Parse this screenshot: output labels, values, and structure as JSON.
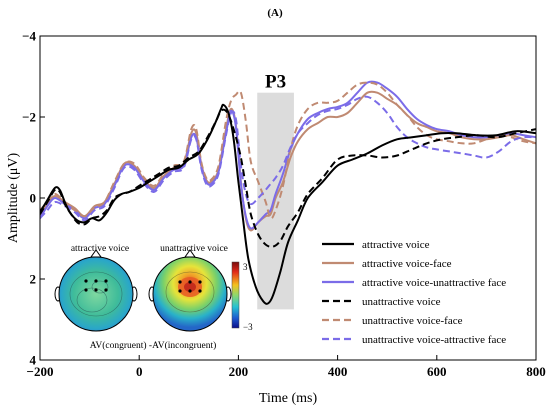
{
  "panel_label": "(A)",
  "chart_data": {
    "type": "line",
    "xlabel": "Time (ms)",
    "ylabel": "Amplitude (μV)",
    "xlim": [
      -200,
      800
    ],
    "ylim": [
      -4,
      4
    ],
    "y_inverted": true,
    "x_ticks": [
      -200,
      0,
      200,
      400,
      600,
      800
    ],
    "x_tick_labels": [
      "−200",
      "0",
      "200",
      "400",
      "600",
      "800"
    ],
    "y_ticks": [
      -4,
      -2,
      0,
      2,
      4
    ],
    "y_tick_labels": [
      "−4",
      "−2",
      "0",
      "2",
      "4"
    ],
    "grid": false,
    "legend_position": "bottom-right",
    "annotation": {
      "label": "P3",
      "x_range": [
        238,
        312
      ],
      "y_range": [
        -2.6,
        2.75
      ],
      "color": "#dcdcdc"
    },
    "series": [
      {
        "name": "attractive voice",
        "color": "#000000",
        "dash": "solid",
        "x": [
          -200,
          -185,
          -170,
          -160,
          -150,
          -140,
          -125,
          -110,
          -95,
          -80,
          -65,
          -50,
          -35,
          -20,
          0,
          20,
          40,
          60,
          80,
          100,
          120,
          140,
          155,
          165,
          170,
          180,
          190,
          200,
          210,
          220,
          235,
          250,
          260,
          270,
          285,
          300,
          320,
          340,
          370,
          400,
          430,
          460,
          490,
          520,
          550,
          580,
          610,
          640,
          680,
          720,
          760,
          800
        ],
        "y": [
          0.35,
          0.05,
          -0.25,
          -0.2,
          0.1,
          0.35,
          0.55,
          0.6,
          0.5,
          0.55,
          0.35,
          0.05,
          -0.1,
          -0.15,
          -0.25,
          -0.4,
          -0.55,
          -0.7,
          -0.75,
          -0.95,
          -1.1,
          -1.5,
          -1.9,
          -2.2,
          -2.3,
          -2.1,
          -1.5,
          -0.4,
          0.6,
          1.5,
          2.2,
          2.55,
          2.6,
          2.4,
          1.8,
          1.1,
          0.55,
          0.0,
          -0.4,
          -0.8,
          -0.95,
          -1.1,
          -1.3,
          -1.45,
          -1.5,
          -1.55,
          -1.6,
          -1.6,
          -1.55,
          -1.55,
          -1.65,
          -1.6
        ]
      },
      {
        "name": "attractive voice-face",
        "color": "#c08a72",
        "dash": "solid",
        "x": [
          -200,
          -185,
          -170,
          -150,
          -130,
          -110,
          -90,
          -70,
          -50,
          -30,
          -10,
          10,
          30,
          50,
          70,
          90,
          105,
          115,
          125,
          135,
          145,
          160,
          175,
          185,
          195,
          205,
          215,
          225,
          240,
          255,
          265,
          275,
          290,
          305,
          320,
          340,
          360,
          380,
          400,
          420,
          440,
          460,
          480,
          500,
          520,
          540,
          560,
          580,
          600,
          625,
          650,
          675,
          700,
          725,
          750,
          775,
          800
        ],
        "y": [
          0.45,
          0.15,
          -0.05,
          0.1,
          0.25,
          0.45,
          0.2,
          0.1,
          -0.35,
          -0.85,
          -0.8,
          -0.45,
          -0.25,
          -0.55,
          -0.75,
          -0.85,
          -1.6,
          -1.6,
          -0.85,
          -0.45,
          -0.4,
          -0.7,
          -1.7,
          -2.2,
          -1.8,
          -0.4,
          0.5,
          0.8,
          0.6,
          0.45,
          0.4,
          0.0,
          -0.4,
          -1.0,
          -1.4,
          -1.7,
          -1.85,
          -2.0,
          -2.0,
          -2.1,
          -2.35,
          -2.6,
          -2.6,
          -2.45,
          -2.3,
          -2.05,
          -1.85,
          -1.75,
          -1.65,
          -1.6,
          -1.5,
          -1.45,
          -1.45,
          -1.5,
          -1.55,
          -1.45,
          -1.35
        ]
      },
      {
        "name": "attractive voice-unattractive face",
        "color": "#7b6ce8",
        "dash": "solid",
        "x": [
          -200,
          -185,
          -170,
          -150,
          -130,
          -110,
          -90,
          -70,
          -50,
          -30,
          -10,
          10,
          30,
          50,
          70,
          90,
          105,
          115,
          125,
          135,
          145,
          160,
          175,
          185,
          195,
          205,
          215,
          225,
          240,
          255,
          265,
          275,
          290,
          305,
          320,
          340,
          360,
          380,
          400,
          420,
          440,
          460,
          480,
          500,
          520,
          540,
          560,
          580,
          600,
          625,
          650,
          675,
          700,
          725,
          750,
          775,
          800
        ],
        "y": [
          0.5,
          0.2,
          0.0,
          0.15,
          0.3,
          0.5,
          0.25,
          0.15,
          -0.3,
          -0.8,
          -0.75,
          -0.4,
          -0.2,
          -0.5,
          -0.7,
          -0.8,
          -1.5,
          -1.5,
          -0.8,
          -0.4,
          -0.35,
          -0.65,
          -1.6,
          -2.15,
          -1.75,
          -0.35,
          0.45,
          0.75,
          0.6,
          0.4,
          0.3,
          -0.1,
          -0.6,
          -1.2,
          -1.6,
          -1.95,
          -2.1,
          -2.2,
          -2.25,
          -2.35,
          -2.6,
          -2.85,
          -2.85,
          -2.7,
          -2.5,
          -2.2,
          -1.95,
          -1.8,
          -1.7,
          -1.65,
          -1.55,
          -1.5,
          -1.5,
          -1.55,
          -1.6,
          -1.55,
          -1.5
        ]
      },
      {
        "name": "unattractive voice",
        "color": "#000000",
        "dash": "dashed",
        "x": [
          -200,
          -185,
          -170,
          -160,
          -150,
          -140,
          -125,
          -110,
          -95,
          -80,
          -65,
          -50,
          -35,
          -20,
          0,
          20,
          40,
          60,
          80,
          100,
          120,
          140,
          155,
          165,
          175,
          185,
          195,
          205,
          215,
          225,
          240,
          255,
          270,
          285,
          300,
          320,
          340,
          370,
          400,
          430,
          460,
          490,
          520,
          550,
          580,
          610,
          640,
          680,
          720,
          760,
          800
        ],
        "y": [
          0.4,
          0.1,
          -0.2,
          -0.15,
          0.15,
          0.35,
          0.6,
          0.65,
          0.5,
          0.45,
          0.3,
          0.0,
          -0.1,
          -0.15,
          -0.3,
          -0.45,
          -0.6,
          -0.75,
          -0.8,
          -1.0,
          -1.15,
          -1.55,
          -1.9,
          -2.15,
          -2.15,
          -1.9,
          -1.5,
          -1.0,
          -0.3,
          0.4,
          0.9,
          1.15,
          1.2,
          1.05,
          0.7,
          0.35,
          -0.1,
          -0.5,
          -0.95,
          -1.05,
          -1.05,
          -1.0,
          -1.05,
          -1.2,
          -1.35,
          -1.45,
          -1.5,
          -1.55,
          -1.5,
          -1.6,
          -1.7
        ]
      },
      {
        "name": "unattractive voice-face",
        "color": "#c08a72",
        "dash": "dashed",
        "x": [
          -200,
          -185,
          -170,
          -150,
          -130,
          -110,
          -90,
          -70,
          -50,
          -30,
          -10,
          10,
          30,
          50,
          70,
          90,
          105,
          115,
          125,
          135,
          145,
          160,
          175,
          185,
          195,
          205,
          215,
          225,
          240,
          255,
          265,
          275,
          290,
          305,
          320,
          340,
          360,
          380,
          400,
          420,
          440,
          460,
          480,
          500,
          520,
          540,
          560,
          580,
          600,
          625,
          650,
          675,
          700,
          725,
          750,
          775,
          800
        ],
        "y": [
          0.3,
          0.1,
          -0.1,
          0.1,
          0.3,
          0.45,
          0.25,
          0.1,
          -0.4,
          -0.85,
          -0.85,
          -0.5,
          -0.3,
          -0.6,
          -0.8,
          -0.9,
          -1.7,
          -1.7,
          -0.9,
          -0.5,
          -0.45,
          -0.8,
          -1.9,
          -2.4,
          -2.55,
          -2.6,
          -1.9,
          -0.9,
          -0.4,
          0.1,
          0.5,
          0.3,
          -0.3,
          -1.2,
          -1.8,
          -2.2,
          -2.35,
          -2.35,
          -2.4,
          -2.6,
          -2.8,
          -2.85,
          -2.8,
          -2.6,
          -2.3,
          -2.05,
          -1.75,
          -1.55,
          -1.45,
          -1.4,
          -1.35,
          -1.35,
          -1.45,
          -1.55,
          -1.5,
          -1.4,
          -1.35
        ]
      },
      {
        "name": "unattractive voice-attractive face",
        "color": "#7b6ce8",
        "dash": "dashed",
        "x": [
          -200,
          -185,
          -170,
          -150,
          -130,
          -110,
          -90,
          -70,
          -50,
          -30,
          -10,
          10,
          30,
          50,
          70,
          90,
          105,
          115,
          125,
          135,
          145,
          160,
          175,
          185,
          195,
          205,
          215,
          225,
          240,
          255,
          265,
          275,
          290,
          305,
          320,
          340,
          360,
          380,
          400,
          420,
          440,
          460,
          480,
          500,
          520,
          540,
          560,
          580,
          600,
          625,
          650,
          675,
          700,
          725,
          750,
          775,
          800
        ],
        "y": [
          0.5,
          0.3,
          0.1,
          0.2,
          0.35,
          0.55,
          0.3,
          0.2,
          -0.25,
          -0.75,
          -0.7,
          -0.35,
          -0.15,
          -0.45,
          -0.65,
          -0.75,
          -1.45,
          -1.45,
          -0.75,
          -0.35,
          -0.3,
          -0.6,
          -1.55,
          -2.1,
          -1.95,
          -0.8,
          -0.1,
          0.15,
          0.0,
          -0.2,
          -0.35,
          -0.5,
          -0.8,
          -1.25,
          -1.6,
          -1.85,
          -2.05,
          -2.15,
          -2.2,
          -2.3,
          -2.45,
          -2.5,
          -2.35,
          -2.1,
          -1.75,
          -1.5,
          -1.35,
          -1.25,
          -1.2,
          -1.15,
          -1.1,
          -1.05,
          -1.0,
          -1.15,
          -1.4,
          -1.5,
          -1.5
        ]
      }
    ]
  },
  "inset": {
    "title_left": "attractive voice",
    "title_right": "unattractive voice",
    "caption": "AV(congruent) -AV(incongruent)",
    "scale_max": "3",
    "scale_min": "−3"
  }
}
